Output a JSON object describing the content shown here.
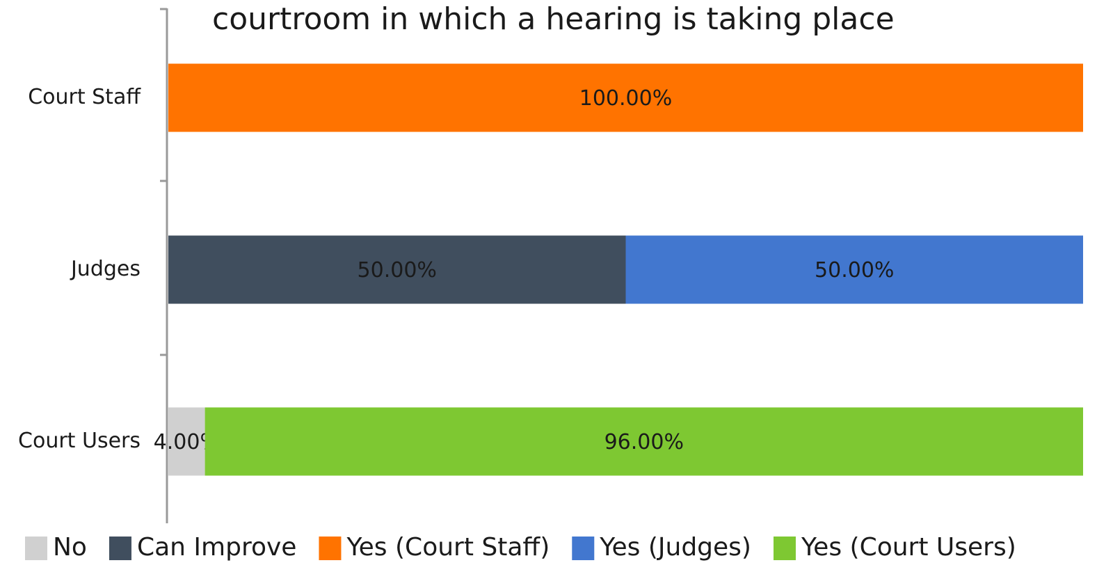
{
  "chart_data": {
    "type": "stacked_bar_horizontal",
    "title": "courtroom in which a hearing is taking place",
    "categories": [
      "Court Staff",
      "Judges",
      "Court Users"
    ],
    "series": [
      {
        "name": "No",
        "color": "#d0d0d0",
        "values": [
          null,
          null,
          4
        ],
        "value_labels": [
          null,
          null,
          "4.00%"
        ]
      },
      {
        "name": "Can Improve",
        "color": "#404e5e",
        "values": [
          null,
          50,
          null
        ],
        "value_labels": [
          null,
          "50.00%",
          null
        ]
      },
      {
        "name": "Yes (Court Staff)",
        "color": "#ff7300",
        "values": [
          100,
          null,
          null
        ],
        "value_labels": [
          "100.00%",
          null,
          null
        ]
      },
      {
        "name": "Yes (Judges)",
        "color": "#4277cf",
        "values": [
          null,
          50,
          null
        ],
        "value_labels": [
          null,
          "50.00%",
          null
        ]
      },
      {
        "name": "Yes (Court Users)",
        "color": "#7ec832",
        "values": [
          null,
          null,
          96
        ],
        "value_labels": [
          null,
          null,
          "96.00%"
        ]
      }
    ],
    "xlim": [
      0,
      100
    ],
    "legend": "bottom"
  }
}
